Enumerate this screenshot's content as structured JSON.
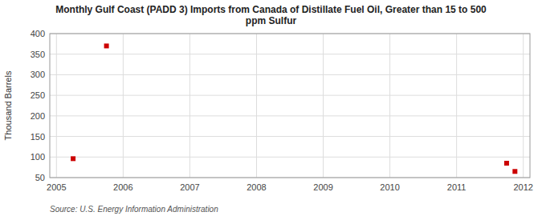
{
  "chart_data": {
    "type": "scatter",
    "title": "Monthly Gulf Coast (PADD 3) Imports from Canada of Distillate Fuel Oil, Greater than 15 to 500\nppm Sulfur",
    "y_label": "Thousand Barrels",
    "source": "Source: U.S. Energy Information Administration",
    "x": [
      2005.25,
      2005.75,
      2011.75,
      2011.875
    ],
    "values": [
      96,
      370,
      85,
      65
    ],
    "color": "#cc0000",
    "marker": "square",
    "xlim": [
      2004.9,
      2012.1
    ],
    "ylim": [
      50,
      400
    ],
    "xticks": [
      2005,
      2006,
      2007,
      2008,
      2009,
      2010,
      2011,
      2012
    ],
    "yticks": [
      50,
      100,
      150,
      200,
      250,
      300,
      350,
      400
    ],
    "grid": true
  }
}
